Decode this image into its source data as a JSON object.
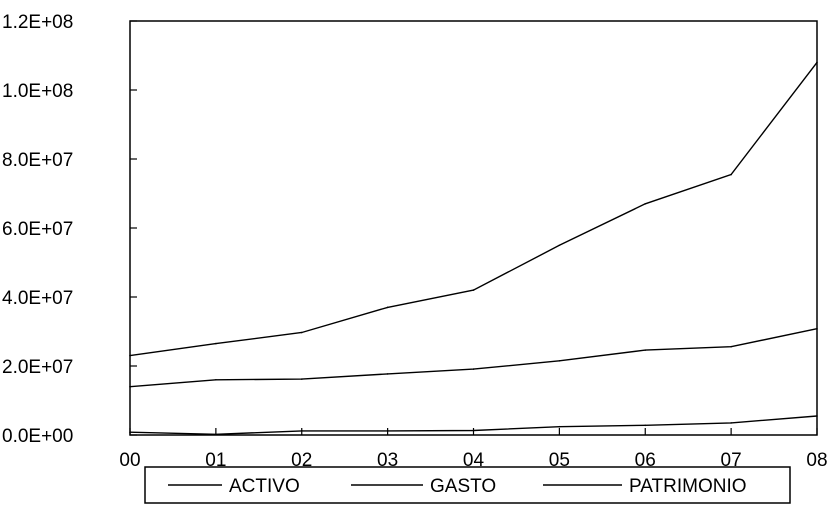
{
  "chart_data": {
    "type": "line",
    "title": "",
    "xlabel": "",
    "ylabel": "",
    "categories": [
      "00",
      "01",
      "02",
      "03",
      "04",
      "05",
      "06",
      "07",
      "08"
    ],
    "y_tick_labels": [
      "0.0E+00",
      "2.0E+07",
      "4.0E+07",
      "6.0E+07",
      "8.0E+07",
      "1.0E+08",
      "1.2E+08"
    ],
    "y_ticks": [
      0,
      20000000,
      40000000,
      60000000,
      80000000,
      100000000,
      120000000
    ],
    "ylim": [
      0,
      120000000
    ],
    "grid": false,
    "legend_position": "bottom",
    "series": [
      {
        "name": "ACTIVO",
        "values": [
          23000000,
          26500000,
          29700000,
          37000000,
          42000000,
          55000000,
          67000000,
          75500000,
          108000000
        ]
      },
      {
        "name": "GASTO",
        "values": [
          14000000,
          16000000,
          16200000,
          17700000,
          19100000,
          21500000,
          24600000,
          25600000,
          30800000
        ]
      },
      {
        "name": "PATRIMONIO",
        "values": [
          800000,
          200000,
          1200000,
          1200000,
          1300000,
          2400000,
          2800000,
          3500000,
          5500000
        ]
      }
    ],
    "line_color": "#000000"
  }
}
